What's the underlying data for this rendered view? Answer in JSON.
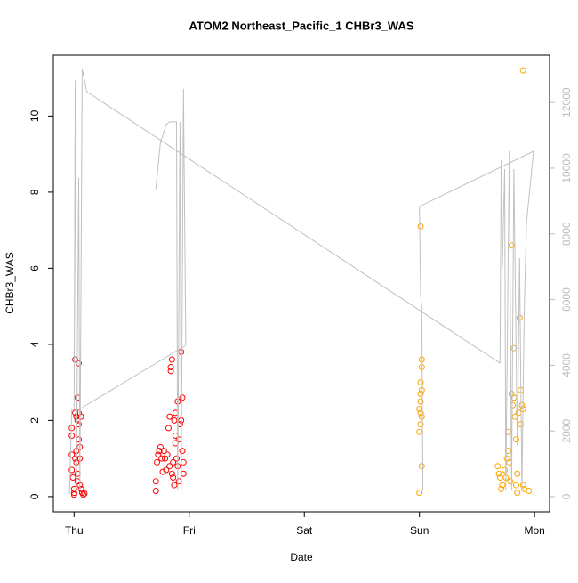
{
  "chart_data": {
    "type": "scatter",
    "title": "ATOM2 Northeast_Pacific_1 CHBr3_WAS",
    "x_label": "Date",
    "y_label": "CHBr3_WAS",
    "xlim": [
      -0.18,
      4.13
    ],
    "ylim": [
      -0.4,
      11.6
    ],
    "y2lim": [
      -460,
      13440
    ],
    "xticks": [
      {
        "value": 0,
        "label": "Thu"
      },
      {
        "value": 1,
        "label": "Fri"
      },
      {
        "value": 2,
        "label": "Sat"
      },
      {
        "value": 3,
        "label": "Sun"
      },
      {
        "value": 4,
        "label": "Mon"
      }
    ],
    "yticks": [
      0,
      2,
      4,
      6,
      8,
      10
    ],
    "y2ticks": [
      0,
      2000,
      4000,
      6000,
      8000,
      10000,
      12000
    ],
    "series": [
      {
        "color": "#ff0000",
        "x": [
          -0.02,
          -0.02,
          -0.02,
          -0.01,
          -0.02,
          0.0,
          0.0,
          0.0,
          0.01,
          0.01,
          0.02,
          0.02,
          0.02,
          0.03,
          0.03,
          0.03,
          0.04,
          0.04,
          0.04,
          0.04,
          0.05,
          0.05,
          0.06,
          0.07,
          0.08,
          0.09,
          0.06,
          0.05,
          0.03,
          0.01,
          0.71,
          0.71,
          0.72,
          0.73,
          0.74,
          0.75,
          0.76,
          0.77,
          0.78,
          0.8,
          0.81,
          0.82,
          0.83,
          0.84,
          0.84,
          0.85,
          0.85,
          0.86,
          0.86,
          0.87,
          0.88,
          0.88,
          0.89,
          0.9,
          0.9,
          0.91,
          0.91,
          0.92,
          0.93,
          0.93,
          0.94,
          0.94,
          0.95,
          0.95,
          0.87,
          0.83,
          0.79,
          0.88
        ],
        "values": [
          1.8,
          1.6,
          1.1,
          0.5,
          0.7,
          0.2,
          0.1,
          0.05,
          3.6,
          2.2,
          2.1,
          1.2,
          0.9,
          2.6,
          2.0,
          0.6,
          3.5,
          1.9,
          1.5,
          2.2,
          1.0,
          0.3,
          0.2,
          0.1,
          0.05,
          0.08,
          2.1,
          1.3,
          0.4,
          1.0,
          0.4,
          0.15,
          0.9,
          1.1,
          1.2,
          1.3,
          1.0,
          0.65,
          1.2,
          0.7,
          1.1,
          1.8,
          2.1,
          3.3,
          3.4,
          3.6,
          0.6,
          0.9,
          0.5,
          2.0,
          2.2,
          1.4,
          1.0,
          0.8,
          2.5,
          1.5,
          0.4,
          1.9,
          2.0,
          3.8,
          2.6,
          1.2,
          0.6,
          0.9,
          0.3,
          0.8,
          1.0,
          1.6
        ]
      },
      {
        "color": "#ffa500",
        "x": [
          3.0,
          3.01,
          3.02,
          3.02,
          3.01,
          3.02,
          3.01,
          3.01,
          3.0,
          3.01,
          3.02,
          3.01,
          3.0,
          3.02,
          3.68,
          3.69,
          3.7,
          3.71,
          3.72,
          3.74,
          3.75,
          3.76,
          3.77,
          3.77,
          3.78,
          3.79,
          3.8,
          3.8,
          3.81,
          3.82,
          3.82,
          3.83,
          3.84,
          3.84,
          3.85,
          3.86,
          3.87,
          3.88,
          3.89,
          3.9,
          3.9,
          3.91,
          3.95,
          3.85,
          3.88,
          3.9
        ],
        "values": [
          0.1,
          7.1,
          3.6,
          3.4,
          3.0,
          2.8,
          2.7,
          2.5,
          2.3,
          2.2,
          2.1,
          1.9,
          1.7,
          0.8,
          0.8,
          0.6,
          0.5,
          0.2,
          0.3,
          0.7,
          0.5,
          1.0,
          1.2,
          1.7,
          0.9,
          0.4,
          6.6,
          2.7,
          2.4,
          3.9,
          2.6,
          2.1,
          1.5,
          0.3,
          0.1,
          2.2,
          4.7,
          2.8,
          2.4,
          2.3,
          11.2,
          0.2,
          0.15,
          0.6,
          1.9,
          0.3
        ]
      },
      {
        "color": "#c0c0c0",
        "axis": "y2",
        "line": true,
        "x": [
          -0.04,
          -0.02,
          0.0,
          0.01,
          0.02,
          0.04,
          0.05,
          0.07,
          0.09,
          0.11,
          3.7,
          3.71,
          3.72,
          3.74,
          3.75,
          3.78,
          3.8,
          3.82,
          3.85,
          3.87,
          3.89,
          3.91,
          3.93,
          3.99,
          3.0,
          3.01,
          3.02,
          3.03,
          null,
          0.07,
          0.97,
          null,
          0.71,
          0.75,
          0.8,
          0.83,
          0.89,
          0.9,
          0.92,
          0.93,
          0.95,
          0.97
        ],
        "values": [
          81,
          2656,
          2656,
          12683,
          217,
          9702,
          217,
          13008,
          12683,
          12330,
          4065,
          10244,
          6992,
          9973,
          217,
          10515,
          217,
          9973,
          1572,
          7263,
          217,
          5637,
          8347,
          10515,
          8835,
          6125,
          5800,
          217,
          null,
          2710,
          4607,
          null,
          9350,
          10786,
          11329,
          11410,
          11410,
          217,
          11410,
          217,
          12412,
          4607
        ]
      }
    ]
  }
}
